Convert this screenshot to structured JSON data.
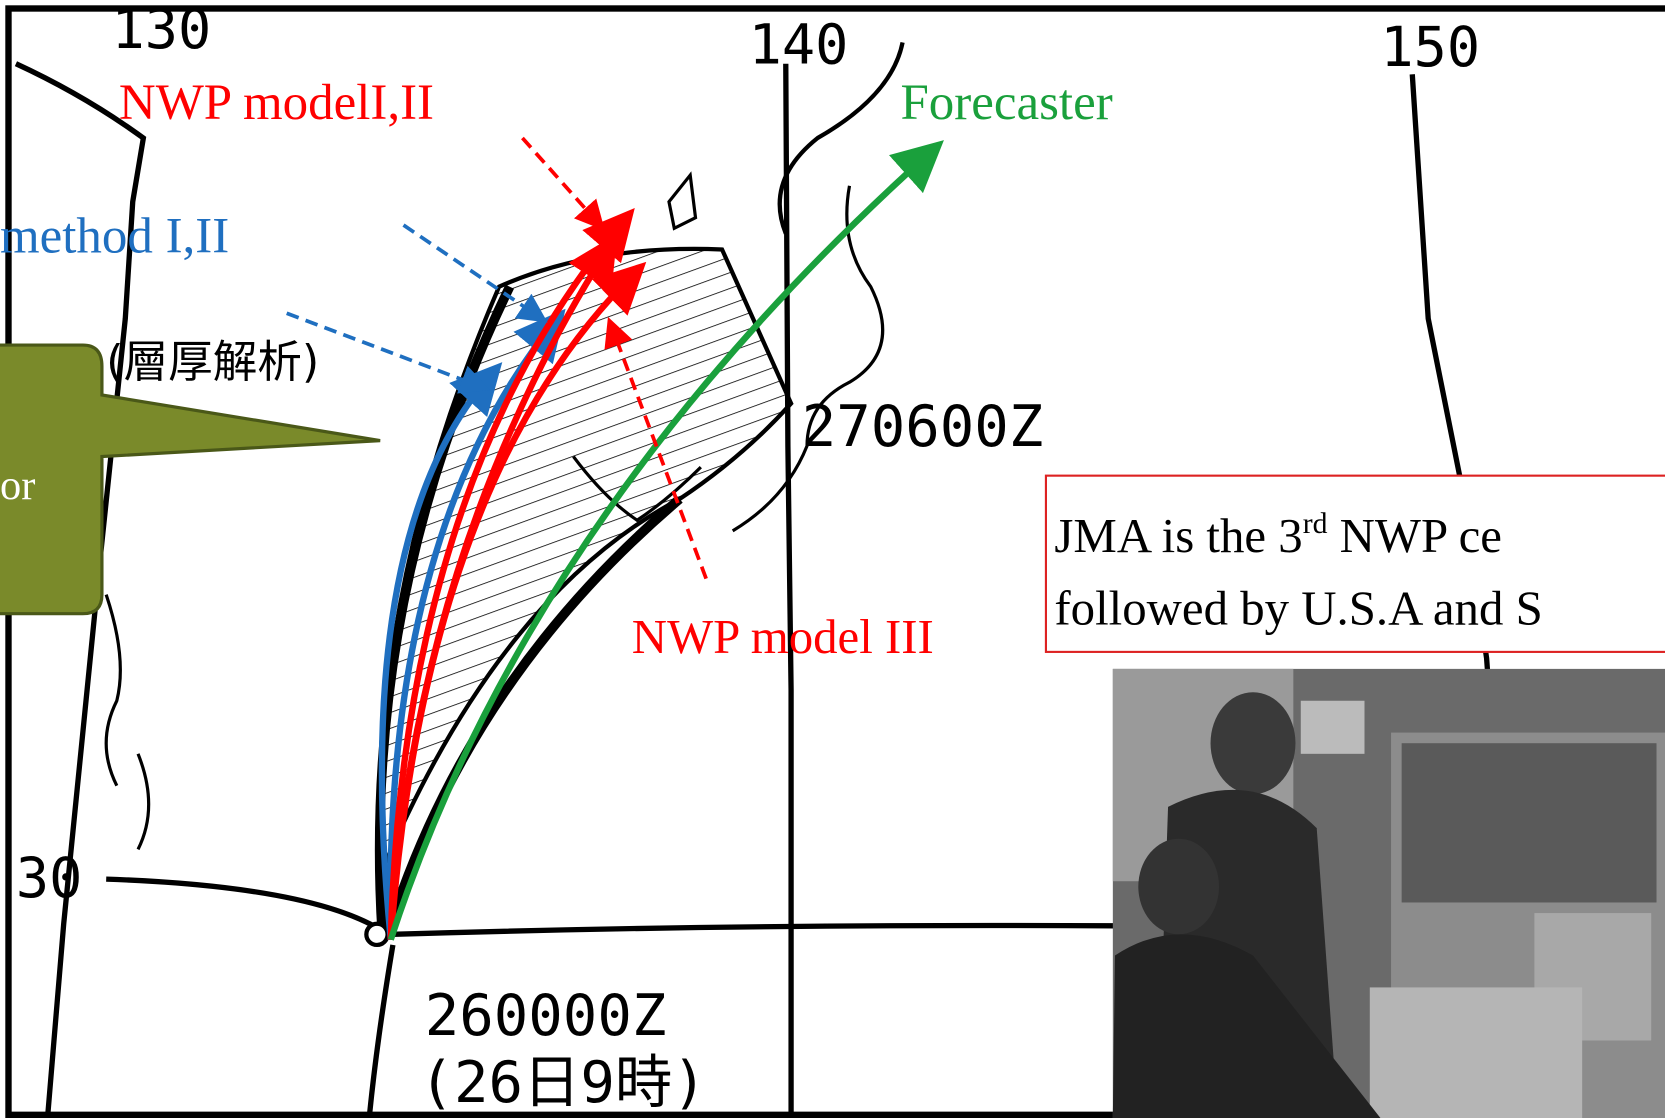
{
  "map": {
    "longitude_labels": [
      "130",
      "140",
      "150"
    ],
    "latitude_labels": [
      "30"
    ],
    "region_label": "(層厚解析)",
    "time_labels": {
      "forecast": "270600Z",
      "initial": "260000Z",
      "initial_local": "(26日9時)"
    },
    "track_labels": {
      "nwp_model_1_2": "NWP modelI,II",
      "forecaster": "Forecaster",
      "method_1_2": "method I,II",
      "nwp_model_3": "NWP model III"
    },
    "callout": "or",
    "note": {
      "line1_start": "JMA is the 3",
      "line1_sup": "rd",
      "line1_end": " NWP ce",
      "line2": "followed by U.S.A and S"
    }
  }
}
